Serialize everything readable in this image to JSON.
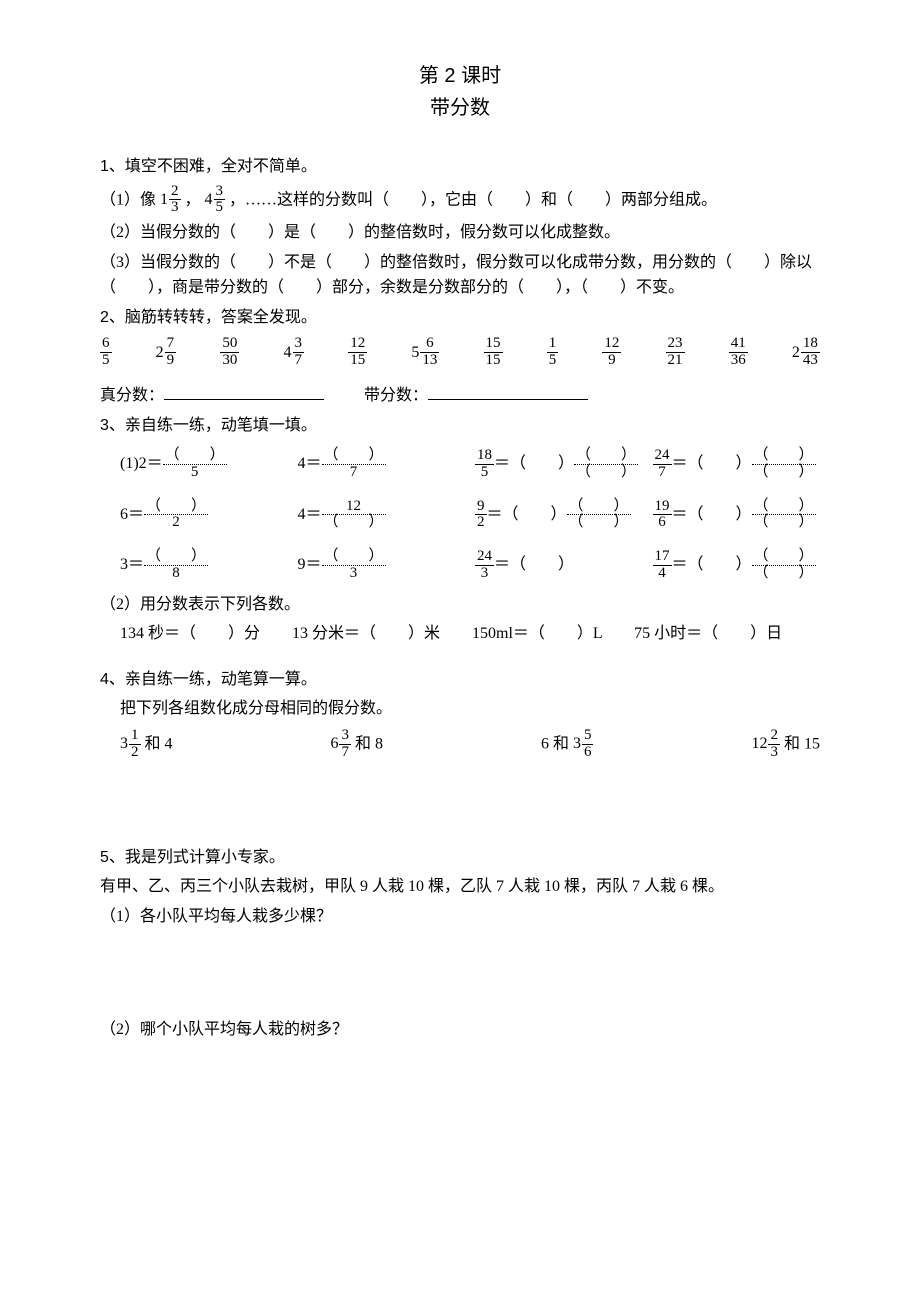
{
  "header": {
    "line1": "第 2 课时",
    "line2": "带分数"
  },
  "q1": {
    "head": "1、填空不困难，全对不简单。",
    "p1_a": "（1）像 ",
    "mixed1": {
      "w": "1",
      "n": "2",
      "d": "3"
    },
    "p1_b": "，",
    "mixed2": {
      "w": "4",
      "n": "3",
      "d": "5"
    },
    "p1_c": "，……这样的分数叫（　　），它由（　　）和（　　）两部分组成。",
    "p2": "（2）当假分数的（　　）是（　　）的整倍数时，假分数可以化成整数。",
    "p3": "（3）当假分数的（　　）不是（　　）的整倍数时，假分数可以化成带分数，用分数的（　　）除以（　　），商是带分数的（　　）部分，余数是分数部分的（　　），（　　）不变。"
  },
  "q2": {
    "head": "2、脑筋转转转，答案全发现。",
    "items": [
      {
        "type": "frac",
        "n": "6",
        "d": "5"
      },
      {
        "type": "mixed",
        "w": "2",
        "n": "7",
        "d": "9"
      },
      {
        "type": "frac",
        "n": "50",
        "d": "30"
      },
      {
        "type": "mixed",
        "w": "4",
        "n": "3",
        "d": "7"
      },
      {
        "type": "frac",
        "n": "12",
        "d": "15"
      },
      {
        "type": "mixed",
        "w": "5",
        "n": "6",
        "d": "13"
      },
      {
        "type": "frac",
        "n": "15",
        "d": "15"
      },
      {
        "type": "frac",
        "n": "1",
        "d": "5"
      },
      {
        "type": "frac",
        "n": "12",
        "d": "9"
      },
      {
        "type": "frac",
        "n": "23",
        "d": "21"
      },
      {
        "type": "frac",
        "n": "41",
        "d": "36"
      },
      {
        "type": "mixed",
        "w": "2",
        "n": "18",
        "d": "43"
      }
    ],
    "label_proper": "真分数：",
    "label_mixed": "带分数："
  },
  "q3": {
    "head": "3、亲自练一练，动笔填一填。",
    "row1": {
      "a_lhs": "(1)2＝",
      "a_n": "（　　）",
      "a_d": "5",
      "b_lhs": "4＝",
      "b_n": "（　　）",
      "b_d": "7",
      "c_lfrac_n": "18",
      "c_lfrac_d": "5",
      "c_mid": "＝（　　）",
      "c_rn": "（　　）",
      "c_rd": "（　　）",
      "d_lfrac_n": "24",
      "d_lfrac_d": "7",
      "d_mid": "＝（　　）",
      "d_rn": "（　　）",
      "d_rd": "（　　）"
    },
    "row2": {
      "a_lhs": "6＝",
      "a_n": "（　　）",
      "a_d": "2",
      "b_lhs": "4＝",
      "b_n": "12",
      "b_d": "（　　）",
      "c_lfrac_n": "9",
      "c_lfrac_d": "2",
      "c_mid": "＝（　　）",
      "c_rn": "（　　）",
      "c_rd": "（　　）",
      "d_lfrac_n": "19",
      "d_lfrac_d": "6",
      "d_mid": "＝（　　）",
      "d_rn": "（　　）",
      "d_rd": "（　　）"
    },
    "row3": {
      "a_lhs": "3＝",
      "a_n": "（　　）",
      "a_d": "8",
      "b_lhs": "9＝",
      "b_n": "（　　）",
      "b_d": "3",
      "c_lfrac_n": "24",
      "c_lfrac_d": "3",
      "c_mid": "＝（　　）",
      "c_rn": "",
      "c_rd": "",
      "d_lfrac_n": "17",
      "d_lfrac_d": "4",
      "d_mid": "＝（　　）",
      "d_rn": "（　　）",
      "d_rd": "（　　）"
    },
    "part2_head": "（2）用分数表示下列各数。",
    "part2_line": "134 秒＝（　　）分　　13 分米＝（　　）米　　150ml＝（　　）L　　75 小时＝（　　）日"
  },
  "q4": {
    "head": "4、亲自练一练，动笔算一算。",
    "sub": "把下列各组数化成分母相同的假分数。",
    "items": [
      {
        "w": "3",
        "n": "1",
        "d": "2",
        "and": " 和 4"
      },
      {
        "w": "6",
        "n": "3",
        "d": "7",
        "and": " 和 8"
      },
      {
        "pre": "6 和 ",
        "w": "3",
        "n": "5",
        "d": "6",
        "and": ""
      },
      {
        "w": "12",
        "n": "2",
        "d": "3",
        "and": " 和 15"
      }
    ]
  },
  "q5": {
    "head": "5、我是列式计算小专家。",
    "body": "有甲、乙、丙三个小队去栽树，甲队 9 人栽 10 棵，乙队 7 人栽 10 棵，丙队 7 人栽 6 棵。",
    "p1": "（1）各小队平均每人栽多少棵？",
    "p2": "（2）哪个小队平均每人栽的树多？"
  },
  "style": {
    "text_color": "#000000",
    "background_color": "#ffffff",
    "body_fontsize": 16,
    "title_fontsize": 20,
    "frac_fontsize": 15
  }
}
